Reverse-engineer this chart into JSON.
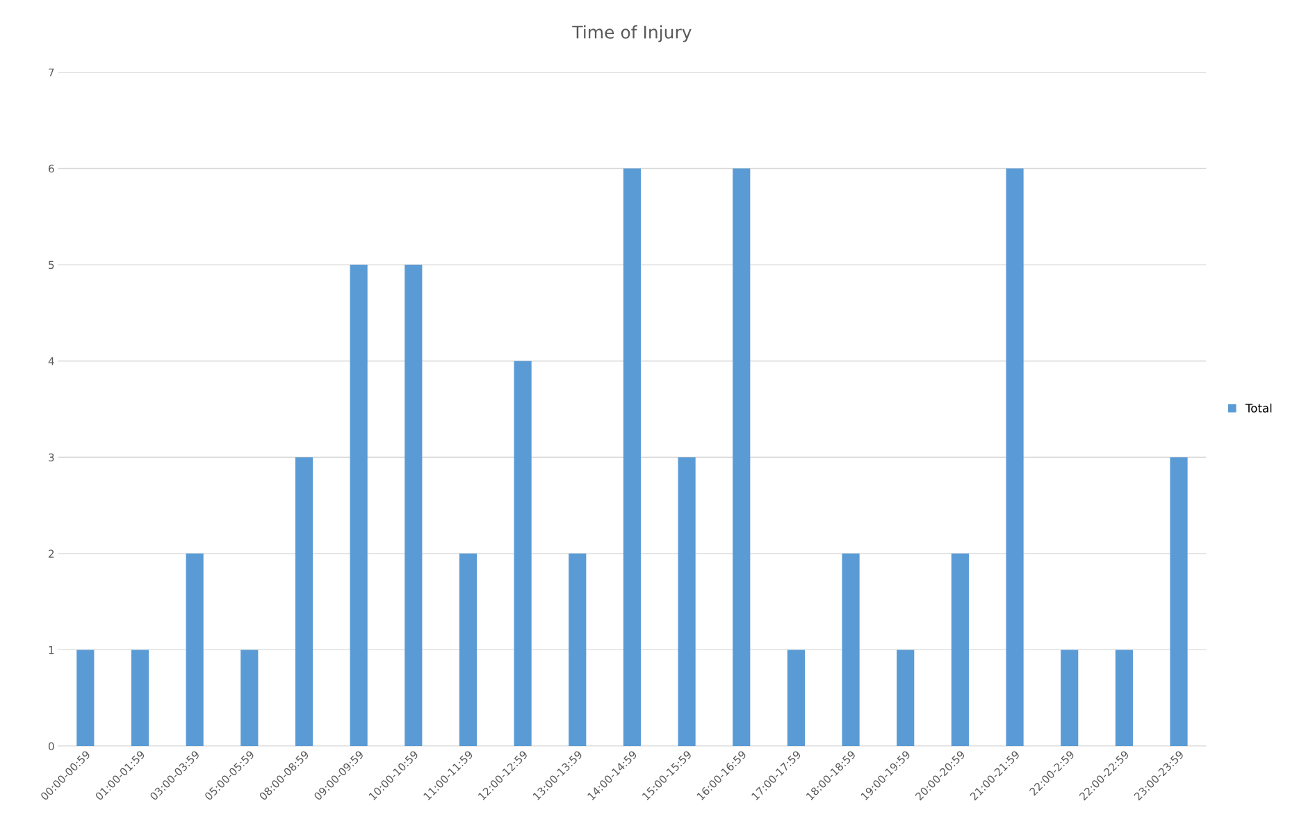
{
  "chart_data": {
    "type": "bar",
    "title": "Time of Injury",
    "categories": [
      "00:00-00:59",
      "01:00-01:59",
      "03:00-03:59",
      "05:00-05:59",
      "08:00-08:59",
      "09:00-09:59",
      "10:00-10:59",
      "11:00-11:59",
      "12:00-12:59",
      "13:00-13:59",
      "14:00-14:59",
      "15:00-15:59",
      "16:00-16:59",
      "17:00-17:59",
      "18:00-18:59",
      "19:00-19:59",
      "20:00-20:59",
      "21:00-21:59",
      "22:00-2:59",
      "22:00-22:59",
      "23:00-23:59"
    ],
    "series": [
      {
        "name": "Total",
        "color": "#5b9bd5",
        "values": [
          1,
          1,
          2,
          1,
          3,
          5,
          5,
          2,
          4,
          2,
          6,
          3,
          6,
          1,
          2,
          1,
          2,
          6,
          1,
          1,
          3
        ]
      }
    ],
    "ylim": [
      0,
      7
    ],
    "yticks": [
      0,
      1,
      2,
      3,
      4,
      5,
      6,
      7
    ],
    "grid": "y",
    "legend": "right"
  }
}
